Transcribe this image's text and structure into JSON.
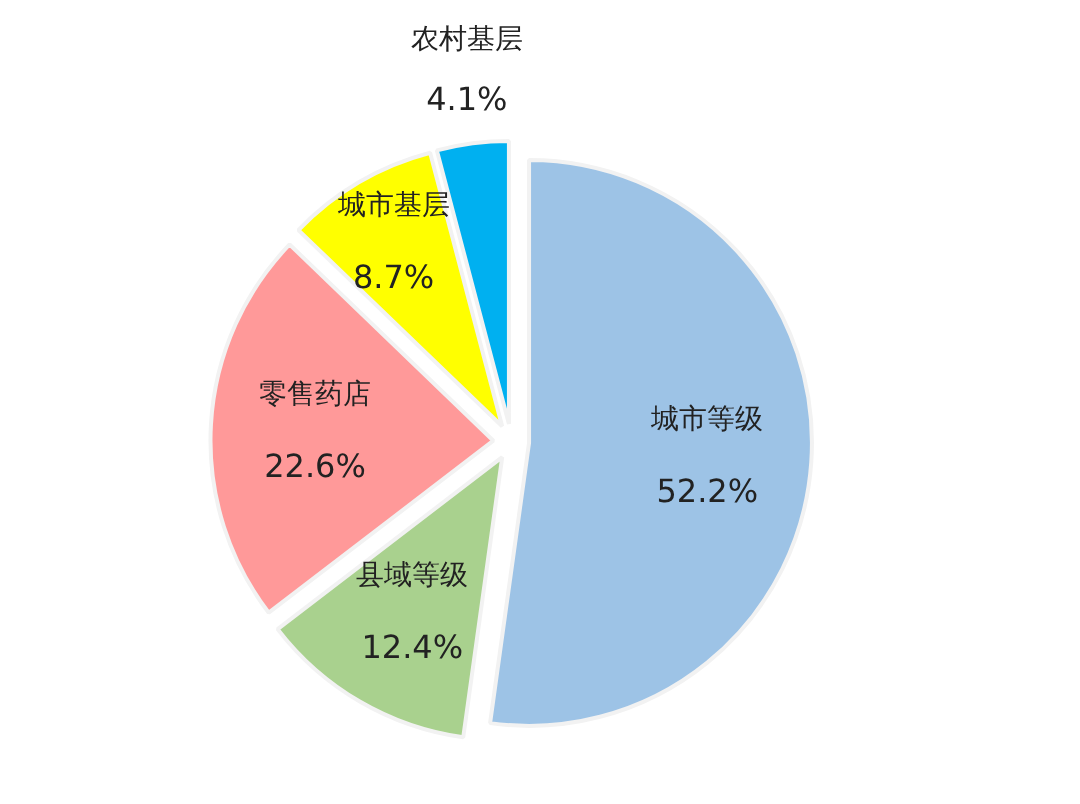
{
  "chart_data": {
    "type": "pie",
    "categories": [
      "城市等级",
      "县域等级",
      "零售药店",
      "城市基层",
      "农村基层"
    ],
    "values": [
      52.2,
      12.4,
      22.6,
      8.7,
      4.1
    ],
    "colors": [
      "#9dc3e6",
      "#a9d18e",
      "#ff9999",
      "#ffff00",
      "#00b0f0"
    ],
    "value_labels": [
      "52.2%",
      "12.4%",
      "22.6%",
      "8.7%",
      "4.1%"
    ]
  }
}
